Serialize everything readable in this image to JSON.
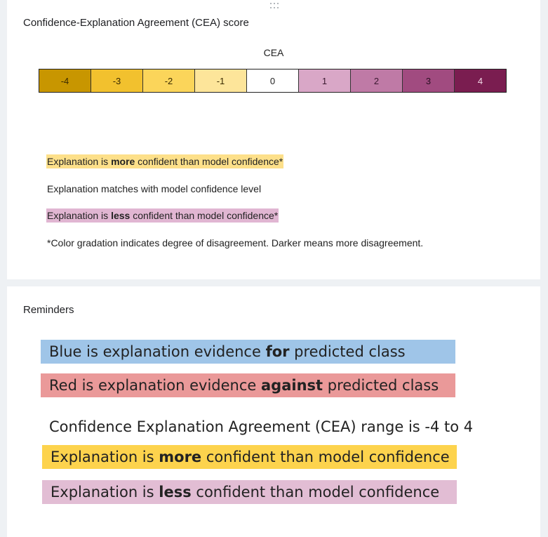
{
  "cea_panel": {
    "title": "Confidence-Explanation Agreement (CEA) score",
    "scale_label": "CEA",
    "scale": [
      {
        "value": "-4",
        "color": "#c89600",
        "text_color": "#3a2a00"
      },
      {
        "value": "-3",
        "color": "#f2c12e",
        "text_color": "#3a2a00"
      },
      {
        "value": "-2",
        "color": "#fbd55a",
        "text_color": "#3a2a00"
      },
      {
        "value": "-1",
        "color": "#fde59a",
        "text_color": "#3a2a00"
      },
      {
        "value": "0",
        "color": "#ffffff",
        "text_color": "#222222"
      },
      {
        "value": "1",
        "color": "#d9a7c7",
        "text_color": "#3a1830"
      },
      {
        "value": "2",
        "color": "#bf7aa6",
        "text_color": "#3a1830"
      },
      {
        "value": "3",
        "color": "#a14b80",
        "text_color": "#2a0f22"
      },
      {
        "value": "4",
        "color": "#7a1d50",
        "text_color": "#f2d8e6"
      }
    ],
    "legend": {
      "more_pre": "Explanation is ",
      "more_bold": "more",
      "more_post": " confident than model confidence*",
      "match": "Explanation matches with model confidence level",
      "less_pre": "Explanation is ",
      "less_bold": "less",
      "less_post": " confident than model confidence*",
      "footnote": "*Color gradation indicates degree of disagreement. Darker means more disagreement."
    }
  },
  "reminders_panel": {
    "title": "Reminders",
    "blue": {
      "pre": "Blue is explanation evidence ",
      "bold": "for",
      "post": " predicted class",
      "color": "#9fc5e8"
    },
    "red": {
      "pre": "Red is explanation evidence ",
      "bold": "against",
      "post": " predicted class",
      "color": "#ea9999"
    },
    "range_text": "Confidence Explanation Agreement (CEA) range is -4 to 4",
    "more": {
      "pre": "Explanation is ",
      "bold": "more",
      "post": " confident than model confidence",
      "color": "#fdd34d"
    },
    "less": {
      "pre": "Explanation is ",
      "bold": "less",
      "post": " confident than model confidence",
      "color": "#e2bdd4"
    }
  }
}
